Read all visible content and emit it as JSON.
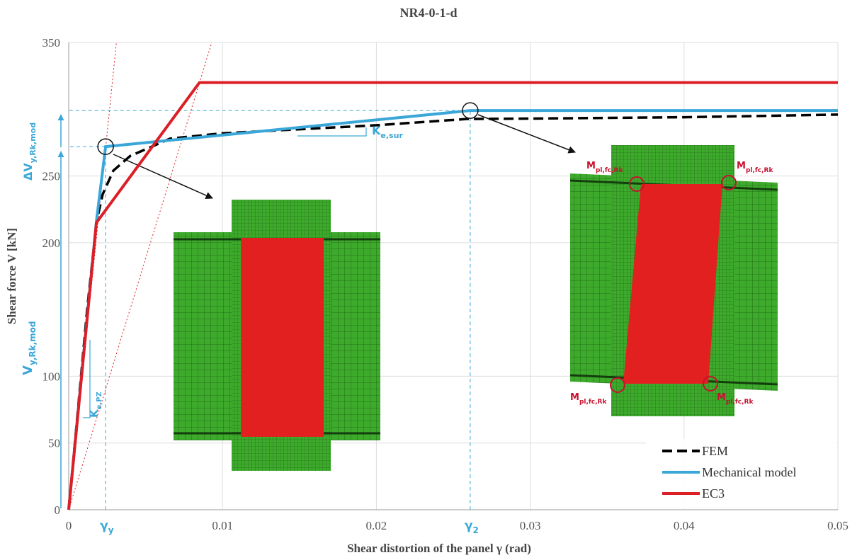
{
  "chart_data": {
    "type": "line",
    "title": "NR4-0-1-d",
    "x_label": "Shear distortion of the panel γ (rad)",
    "y_label": "Shear force V [kN]",
    "xlim": [
      0,
      0.05
    ],
    "xticks": [
      0,
      0.01,
      0.02,
      0.03,
      0.04,
      0.05
    ],
    "ylim": [
      0,
      350
    ],
    "yticks": [
      0,
      50,
      100,
      200,
      250,
      350
    ],
    "grid": true,
    "legend": "bottom-right",
    "series": [
      {
        "name": "FEM",
        "color": "#000000",
        "dash": true,
        "x": [
          0,
          0.0012,
          0.0018,
          0.0022,
          0.0029,
          0.004,
          0.0066,
          0.01,
          0.015,
          0.02,
          0.0259,
          0.03,
          0.04,
          0.05
        ],
        "values": [
          0,
          150,
          215,
          236,
          254,
          265,
          278,
          282,
          285,
          288,
          292.7,
          293,
          294,
          296
        ]
      },
      {
        "name": "Mechanical model",
        "color": "#3aa7d8",
        "x": [
          0,
          0.0018,
          0.0024,
          0.0261,
          0.05
        ],
        "values": [
          0,
          216,
          272,
          299,
          299
        ]
      },
      {
        "name": "EC3",
        "color": "#dc1f26",
        "x": [
          0,
          0.0018,
          0.0085,
          0.05
        ],
        "values": [
          0,
          215,
          320,
          320
        ]
      }
    ],
    "stiffness_lines": [
      {
        "color": "#dc1f26",
        "x": [
          0,
          0.0031
        ],
        "values": [
          0,
          350
        ]
      },
      {
        "color": "#dc1f26",
        "x": [
          0,
          0.0093
        ],
        "values": [
          0,
          350
        ]
      }
    ],
    "markers": [
      {
        "label": {
          "text": "γ",
          "sub": "y"
        },
        "x": 0.0024,
        "y": 272
      },
      {
        "label": {
          "text": "γ",
          "sub": "2"
        },
        "x": 0.0261,
        "y": 299
      }
    ],
    "annotations": {
      "v_rk": {
        "text": "V",
        "sub": "y,Rk,mod"
      },
      "delta_v": {
        "text": "ΔV",
        "sub": "y,Rk,mod"
      },
      "k_pz": {
        "text": "K",
        "sub": "e,PZ"
      },
      "k_sur": {
        "text": "K",
        "sub": "e,sur"
      },
      "mesh_labels": [
        {
          "text": "M",
          "sub": "pl,fc,Rk"
        },
        {
          "text": "M",
          "sub": "pl,fc,Rk"
        },
        {
          "text": "M",
          "sub": "pl,fc,Rk"
        },
        {
          "text": "M",
          "sub": "pl,fc,Rk"
        }
      ]
    }
  }
}
